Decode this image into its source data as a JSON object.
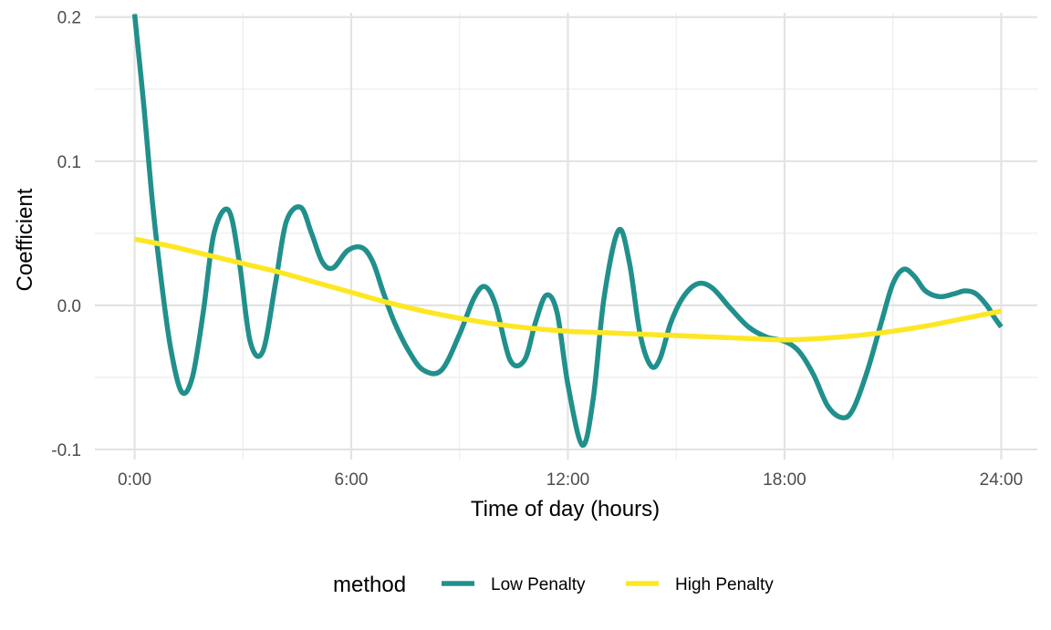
{
  "chart_data": {
    "type": "line",
    "xlabel": "Time of day (hours)",
    "ylabel": "Coefficient",
    "xlim": [
      -1.1,
      25.0
    ],
    "ylim": [
      -0.107,
      0.203
    ],
    "x_ticks": [
      {
        "value": 0,
        "label": "0:00"
      },
      {
        "value": 6,
        "label": "6:00"
      },
      {
        "value": 12,
        "label": "12:00"
      },
      {
        "value": 18,
        "label": "18:00"
      },
      {
        "value": 24,
        "label": "24:00"
      }
    ],
    "x_minor_ticks": [
      3,
      9,
      15,
      21
    ],
    "y_ticks": [
      {
        "value": 0.2,
        "label": "0.2"
      },
      {
        "value": 0.1,
        "label": "0.1"
      },
      {
        "value": 0.0,
        "label": "0.0"
      },
      {
        "value": -0.1,
        "label": "-0.1"
      }
    ],
    "y_minor_ticks": [
      0.15,
      0.05,
      -0.05
    ],
    "grid": true,
    "legend": {
      "title": "method",
      "position": "bottom"
    },
    "series": [
      {
        "name": "Low Penalty",
        "color": "#21908C",
        "x": [
          0.0,
          0.25,
          0.5,
          0.75,
          1.0,
          1.3,
          1.6,
          1.9,
          2.2,
          2.6,
          2.9,
          3.2,
          3.55,
          3.9,
          4.2,
          4.6,
          4.9,
          5.2,
          5.5,
          5.9,
          6.3,
          6.6,
          6.9,
          7.2,
          7.6,
          8.0,
          8.5,
          9.0,
          9.4,
          9.7,
          10.0,
          10.4,
          10.8,
          11.1,
          11.4,
          11.7,
          12.0,
          12.4,
          12.7,
          13.0,
          13.4,
          13.7,
          14.0,
          14.3,
          14.55,
          14.85,
          15.2,
          15.6,
          16.0,
          16.5,
          17.0,
          17.5,
          18.0,
          18.4,
          18.8,
          19.2,
          19.6,
          19.9,
          20.3,
          20.7,
          21.0,
          21.3,
          21.6,
          21.9,
          22.3,
          22.7,
          23.0,
          23.3,
          23.6,
          23.8,
          24.0
        ],
        "y": [
          0.202,
          0.14,
          0.07,
          0.015,
          -0.03,
          -0.06,
          -0.05,
          -0.005,
          0.05,
          0.066,
          0.03,
          -0.025,
          -0.032,
          0.015,
          0.058,
          0.068,
          0.05,
          0.03,
          0.026,
          0.038,
          0.04,
          0.03,
          0.008,
          -0.012,
          -0.032,
          -0.045,
          -0.045,
          -0.02,
          0.005,
          0.013,
          0.0,
          -0.038,
          -0.038,
          -0.012,
          0.007,
          -0.005,
          -0.055,
          -0.097,
          -0.065,
          0.005,
          0.052,
          0.03,
          -0.02,
          -0.042,
          -0.037,
          -0.012,
          0.006,
          0.015,
          0.012,
          -0.002,
          -0.015,
          -0.022,
          -0.025,
          -0.032,
          -0.048,
          -0.07,
          -0.078,
          -0.072,
          -0.045,
          -0.01,
          0.015,
          0.025,
          0.02,
          0.01,
          0.006,
          0.008,
          0.01,
          0.008,
          0.0,
          -0.008,
          -0.015
        ]
      },
      {
        "name": "High Penalty",
        "color": "#FDE725",
        "x": [
          0,
          1,
          2,
          3,
          4,
          5,
          6,
          7,
          8,
          9,
          10,
          11,
          12,
          13,
          14,
          15,
          16,
          17,
          18,
          19,
          20,
          21,
          22,
          23,
          24
        ],
        "y": [
          0.046,
          0.041,
          0.035,
          0.029,
          0.023,
          0.016,
          0.009,
          0.002,
          -0.004,
          -0.009,
          -0.013,
          -0.016,
          -0.018,
          -0.019,
          -0.02,
          -0.021,
          -0.022,
          -0.023,
          -0.024,
          -0.023,
          -0.021,
          -0.018,
          -0.014,
          -0.009,
          -0.004
        ]
      }
    ]
  }
}
